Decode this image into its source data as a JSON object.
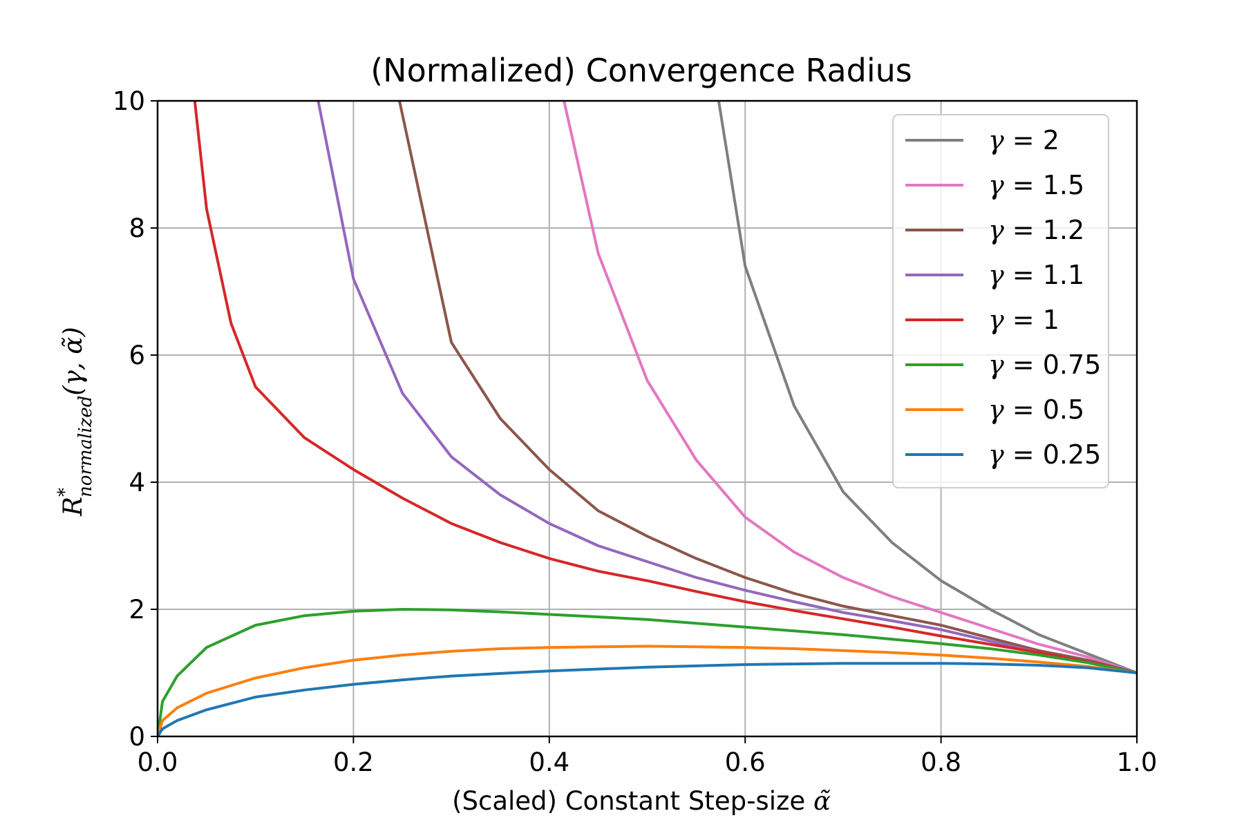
{
  "chart_data": {
    "type": "line",
    "title": "(Normalized) Convergence Radius",
    "xlabel": "(Scaled) Constant Step-size",
    "xlabel_symbol": "α̃",
    "ylabel": "R*normalized(γ, α̃)",
    "ylabel_parts": {
      "base": "R",
      "sup": "*",
      "sub": "normalized",
      "args": "(γ, α̃)"
    },
    "xlim": [
      0.0,
      1.0
    ],
    "ylim": [
      0,
      10
    ],
    "xticks": [
      "0.0",
      "0.2",
      "0.4",
      "0.6",
      "0.8",
      "1.0"
    ],
    "yticks": [
      "0",
      "2",
      "4",
      "6",
      "8",
      "10"
    ],
    "grid": true,
    "legend_position": "upper-right",
    "series": [
      {
        "name": "γ = 2",
        "gamma": "2",
        "color": "#7f7f7f",
        "x": [
          0.573,
          0.6,
          0.65,
          0.7,
          0.75,
          0.8,
          0.85,
          0.9,
          0.95,
          1.0
        ],
        "y": [
          10.0,
          7.4,
          5.2,
          3.85,
          3.05,
          2.45,
          2.0,
          1.6,
          1.3,
          1.0
        ]
      },
      {
        "name": "γ = 1.5",
        "gamma": "1.5",
        "color": "#e377c2",
        "x": [
          0.415,
          0.45,
          0.5,
          0.55,
          0.6,
          0.65,
          0.7,
          0.75,
          0.8,
          0.85,
          0.9,
          0.95,
          1.0
        ],
        "y": [
          10.0,
          7.6,
          5.6,
          4.35,
          3.45,
          2.9,
          2.5,
          2.2,
          1.95,
          1.7,
          1.45,
          1.25,
          1.0
        ]
      },
      {
        "name": "γ = 1.2",
        "gamma": "1.2",
        "color": "#8c564b",
        "x": [
          0.247,
          0.3,
          0.35,
          0.4,
          0.45,
          0.5,
          0.55,
          0.6,
          0.65,
          0.7,
          0.75,
          0.8,
          0.85,
          0.9,
          0.95,
          1.0
        ],
        "y": [
          10.0,
          6.2,
          5.0,
          4.2,
          3.55,
          3.15,
          2.8,
          2.5,
          2.25,
          2.05,
          1.9,
          1.75,
          1.55,
          1.35,
          1.2,
          1.0
        ]
      },
      {
        "name": "γ = 1.1",
        "gamma": "1.1",
        "color": "#9467bd",
        "x": [
          0.164,
          0.2,
          0.25,
          0.3,
          0.35,
          0.4,
          0.45,
          0.5,
          0.55,
          0.6,
          0.65,
          0.7,
          0.75,
          0.8,
          0.85,
          0.9,
          0.95,
          1.0
        ],
        "y": [
          10.0,
          7.2,
          5.4,
          4.4,
          3.8,
          3.35,
          3.0,
          2.75,
          2.5,
          2.3,
          2.12,
          1.95,
          1.82,
          1.68,
          1.5,
          1.32,
          1.17,
          1.0
        ]
      },
      {
        "name": "γ = 1",
        "gamma": "1",
        "color": "#d62728",
        "x": [
          0.038,
          0.05,
          0.075,
          0.1,
          0.15,
          0.2,
          0.25,
          0.3,
          0.35,
          0.4,
          0.45,
          0.5,
          0.55,
          0.6,
          0.65,
          0.7,
          0.75,
          0.8,
          0.85,
          0.9,
          0.95,
          1.0
        ],
        "y": [
          10.0,
          8.3,
          6.5,
          5.5,
          4.7,
          4.2,
          3.75,
          3.35,
          3.05,
          2.8,
          2.6,
          2.45,
          2.28,
          2.12,
          1.98,
          1.85,
          1.72,
          1.58,
          1.45,
          1.32,
          1.17,
          1.0
        ]
      },
      {
        "name": "γ = 0.75",
        "gamma": "0.75",
        "color": "#2ca02c",
        "x": [
          0.0,
          0.005,
          0.02,
          0.05,
          0.1,
          0.15,
          0.2,
          0.25,
          0.3,
          0.35,
          0.4,
          0.45,
          0.5,
          0.55,
          0.6,
          0.65,
          0.7,
          0.75,
          0.8,
          0.85,
          0.9,
          0.95,
          1.0
        ],
        "y": [
          0.0,
          0.55,
          0.95,
          1.4,
          1.75,
          1.9,
          1.97,
          2.0,
          1.99,
          1.96,
          1.92,
          1.88,
          1.84,
          1.78,
          1.72,
          1.66,
          1.6,
          1.53,
          1.46,
          1.38,
          1.28,
          1.16,
          1.0
        ]
      },
      {
        "name": "γ = 0.5",
        "gamma": "0.5",
        "color": "#ff7f0e",
        "x": [
          0.0,
          0.005,
          0.02,
          0.05,
          0.1,
          0.15,
          0.2,
          0.25,
          0.3,
          0.35,
          0.4,
          0.45,
          0.5,
          0.55,
          0.6,
          0.65,
          0.7,
          0.75,
          0.8,
          0.85,
          0.9,
          0.95,
          1.0
        ],
        "y": [
          0.0,
          0.25,
          0.45,
          0.68,
          0.92,
          1.08,
          1.2,
          1.28,
          1.34,
          1.38,
          1.4,
          1.41,
          1.42,
          1.41,
          1.4,
          1.38,
          1.35,
          1.32,
          1.28,
          1.23,
          1.17,
          1.1,
          1.0
        ]
      },
      {
        "name": "γ = 0.25",
        "gamma": "0.25",
        "color": "#1f77b4",
        "x": [
          0.0,
          0.005,
          0.02,
          0.05,
          0.1,
          0.15,
          0.2,
          0.25,
          0.3,
          0.35,
          0.4,
          0.45,
          0.5,
          0.55,
          0.6,
          0.65,
          0.7,
          0.75,
          0.8,
          0.85,
          0.9,
          0.95,
          1.0
        ],
        "y": [
          0.0,
          0.12,
          0.25,
          0.42,
          0.62,
          0.73,
          0.82,
          0.89,
          0.95,
          0.99,
          1.03,
          1.06,
          1.09,
          1.11,
          1.13,
          1.14,
          1.15,
          1.15,
          1.15,
          1.14,
          1.12,
          1.08,
          1.0
        ]
      }
    ]
  }
}
